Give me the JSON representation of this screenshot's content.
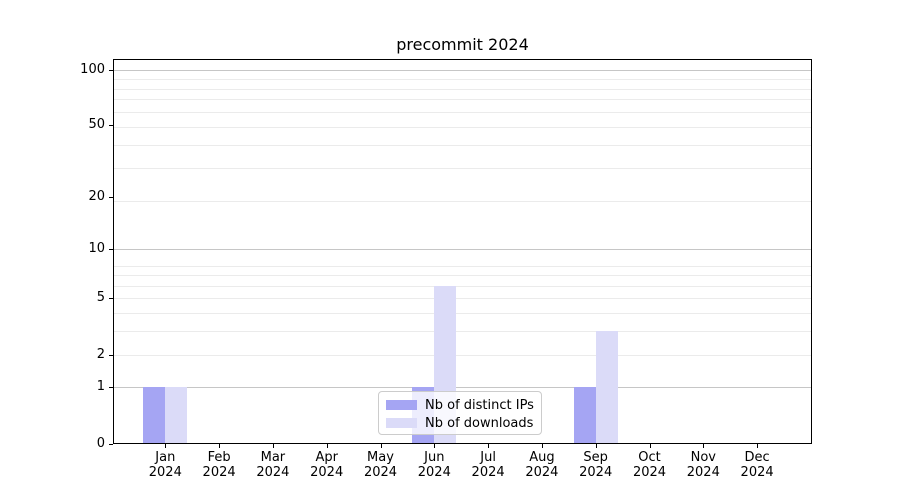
{
  "title": "precommit 2024",
  "chart_data": {
    "type": "bar",
    "title": "precommit 2024",
    "months": [
      "Jan",
      "Feb",
      "Mar",
      "Apr",
      "May",
      "Jun",
      "Jul",
      "Aug",
      "Sep",
      "Oct",
      "Nov",
      "Dec"
    ],
    "year": "2024",
    "series": [
      {
        "name": "Nb of distinct IPs",
        "color": "#a5a5f3",
        "values": [
          1,
          0,
          0,
          0,
          0,
          1,
          0,
          0,
          1,
          0,
          0,
          0
        ]
      },
      {
        "name": "Nb of downloads",
        "color": "#dbdbf8",
        "values": [
          1,
          0,
          0,
          0,
          0,
          6,
          0,
          0,
          3,
          0,
          0,
          0
        ]
      }
    ],
    "y_scale": "log1p",
    "ylim": [
      0,
      114.3
    ],
    "y_tick_values": [
      0,
      1,
      2,
      5,
      10,
      20,
      50,
      100
    ],
    "major_gridlines": [
      1,
      10,
      100
    ],
    "minor_gridlines": [
      2,
      3,
      4,
      5,
      6,
      7,
      8,
      19,
      29,
      39,
      49,
      59,
      69,
      79,
      89
    ],
    "grid": true,
    "xlabel": "",
    "ylabel": "",
    "legend_position": "lower center",
    "legend_entries": [
      "Nb of distinct IPs",
      "Nb of downloads"
    ]
  },
  "colors": {
    "major_grid": "#c6c6c6",
    "minor_grid": "#ebebeb",
    "spine": "#000000",
    "text": "#000000",
    "legend_border": "#cccccc"
  }
}
